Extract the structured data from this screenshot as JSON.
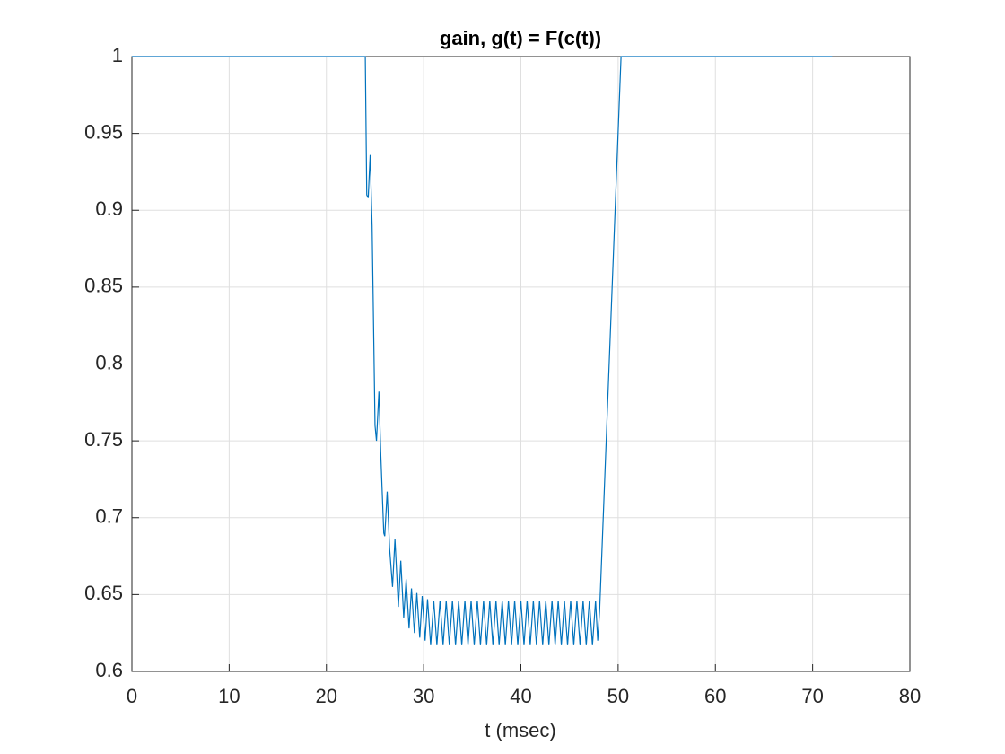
{
  "chart_data": {
    "type": "line",
    "title": "gain, g(t) = F(c(t))",
    "x_label": "t (msec)",
    "xlim": [
      0,
      80
    ],
    "xticks": [
      0,
      10,
      20,
      30,
      40,
      50,
      60,
      70,
      80
    ],
    "ylim": [
      0.6,
      1
    ],
    "yticks": [
      0.6,
      0.65,
      0.7,
      0.75,
      0.8,
      0.85,
      0.9,
      0.95,
      1
    ],
    "grid": true,
    "x": [
      0,
      24,
      24.15,
      24.3,
      24.5,
      24.7,
      25,
      25.15,
      25.4,
      25.6,
      25.9,
      26,
      26.25,
      26.5,
      26.8,
      27.05,
      27.4,
      27.65,
      27.95,
      28.2,
      28.5,
      28.75,
      29.05,
      29.3,
      29.6,
      29.85,
      30.15,
      30.4,
      30.72,
      31.04,
      31.36,
      31.68,
      32,
      32.32,
      32.64,
      32.96,
      33.28,
      33.6,
      33.92,
      34.24,
      34.56,
      34.88,
      35.2,
      35.52,
      35.84,
      36.16,
      36.48,
      36.8,
      37.12,
      37.44,
      37.76,
      38.08,
      38.4,
      38.72,
      39.04,
      39.36,
      39.68,
      40,
      40.32,
      40.64,
      40.96,
      41.28,
      41.6,
      41.92,
      42.24,
      42.56,
      42.88,
      43.2,
      43.52,
      43.84,
      44.16,
      44.48,
      44.8,
      45.12,
      45.44,
      45.76,
      46.08,
      46.4,
      46.72,
      47.04,
      47.36,
      47.68,
      47.9,
      48.1,
      50.3,
      72
    ],
    "series": [
      {
        "color": "#0072bd",
        "values": [
          1,
          1,
          0.91,
          0.908,
          0.936,
          0.89,
          0.76,
          0.75,
          0.782,
          0.74,
          0.69,
          0.688,
          0.717,
          0.68,
          0.655,
          0.686,
          0.642,
          0.672,
          0.635,
          0.66,
          0.628,
          0.654,
          0.625,
          0.651,
          0.622,
          0.649,
          0.62,
          0.647,
          0.617,
          0.646,
          0.617,
          0.646,
          0.617,
          0.646,
          0.617,
          0.646,
          0.617,
          0.646,
          0.617,
          0.646,
          0.617,
          0.646,
          0.617,
          0.646,
          0.617,
          0.646,
          0.617,
          0.646,
          0.617,
          0.646,
          0.617,
          0.646,
          0.617,
          0.646,
          0.617,
          0.646,
          0.617,
          0.646,
          0.617,
          0.646,
          0.617,
          0.646,
          0.617,
          0.646,
          0.617,
          0.646,
          0.617,
          0.646,
          0.617,
          0.646,
          0.617,
          0.646,
          0.617,
          0.646,
          0.617,
          0.646,
          0.617,
          0.646,
          0.617,
          0.646,
          0.617,
          0.646,
          0.62,
          0.64,
          1,
          1
        ]
      }
    ]
  }
}
